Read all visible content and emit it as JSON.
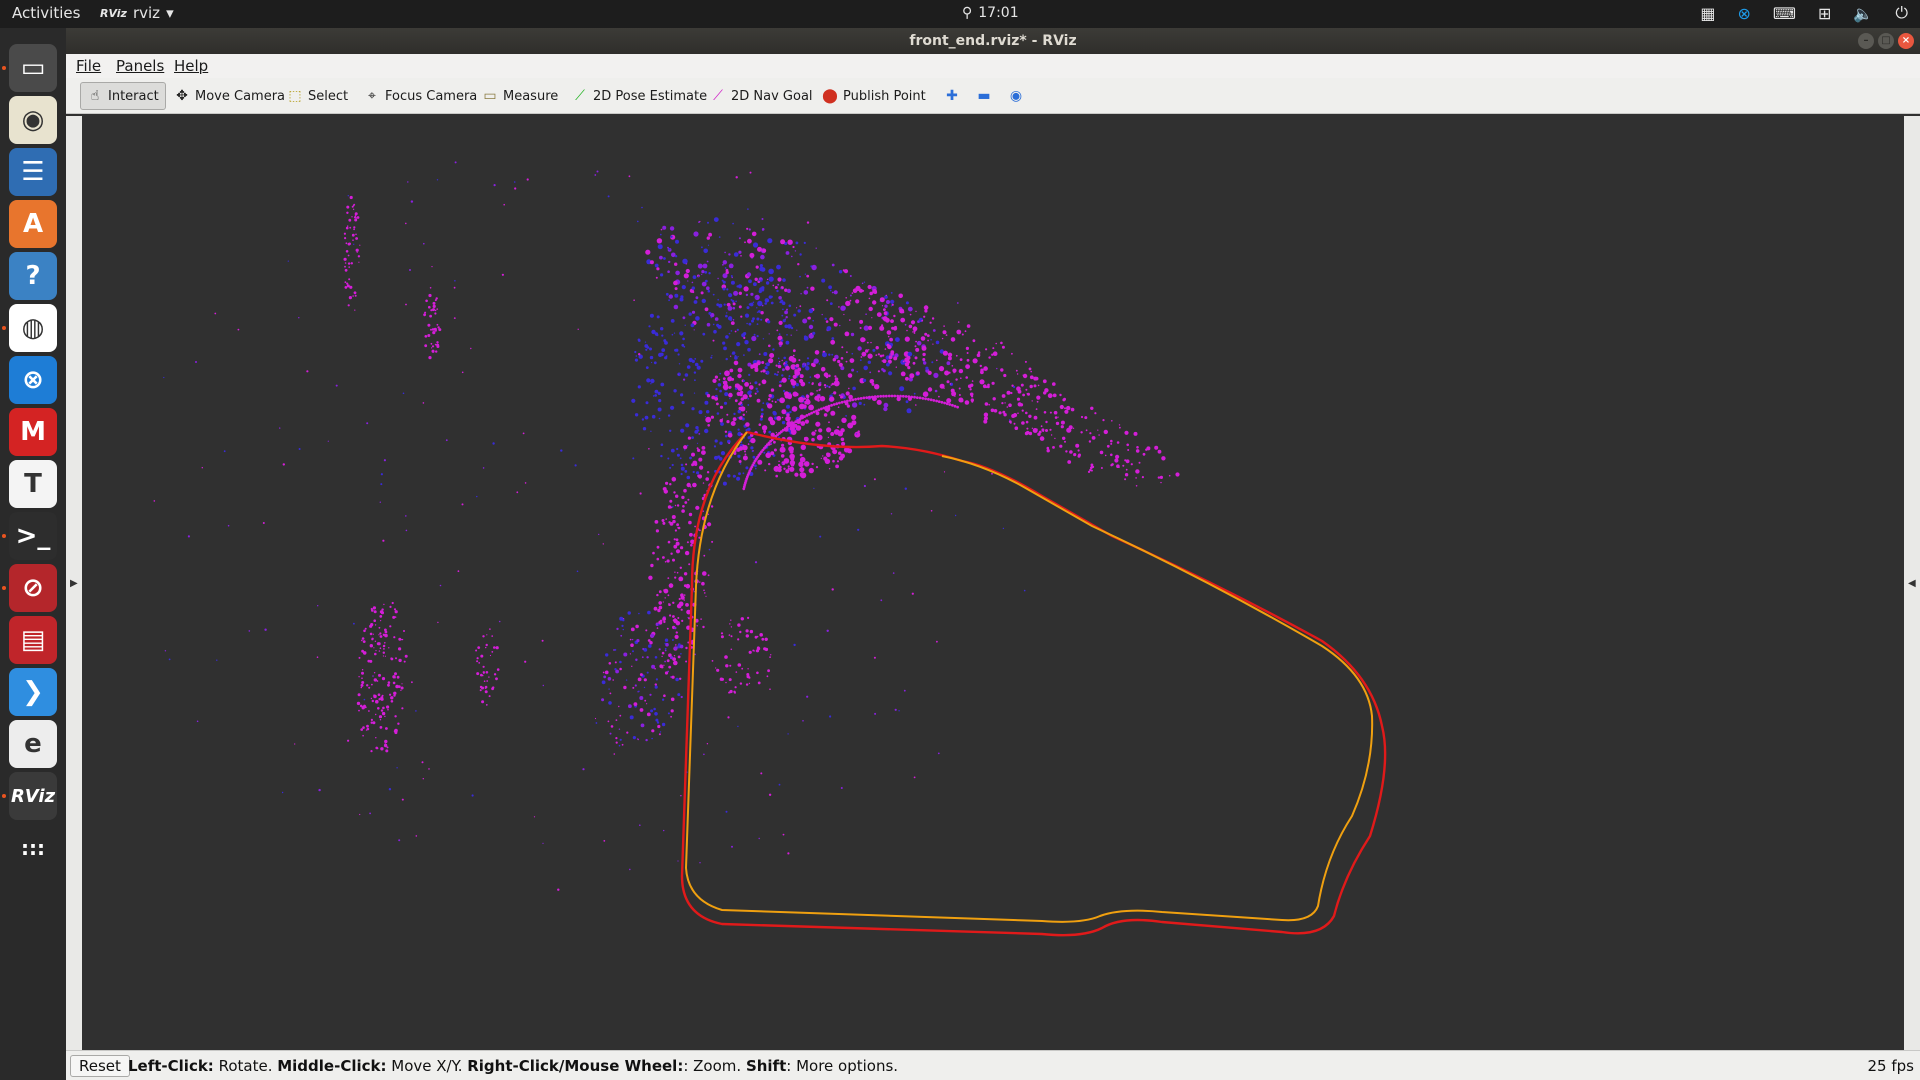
{
  "topbar": {
    "activities": "Activities",
    "app_name": "rviz",
    "app_badge": "RViz",
    "time": "17:01"
  },
  "window": {
    "title": "front_end.rviz* - RViz"
  },
  "menu": {
    "file": "File",
    "panels": "Panels",
    "help": "Help"
  },
  "toolbar": {
    "interact": "Interact",
    "move_camera": "Move Camera",
    "select": "Select",
    "focus_camera": "Focus Camera",
    "measure": "Measure",
    "pose_estimate": "2D Pose Estimate",
    "nav_goal": "2D Nav Goal",
    "publish_point": "Publish Point"
  },
  "dock": {
    "items": [
      {
        "name": "files-icon",
        "color": "#4a4a4a"
      },
      {
        "name": "rhythmbox-icon",
        "color": "#e8e3cf"
      },
      {
        "name": "writer-icon",
        "color": "#2f6db3"
      },
      {
        "name": "software-icon",
        "color": "#e8752d"
      },
      {
        "name": "help-icon",
        "color": "#3b82c4"
      },
      {
        "name": "chrome-icon",
        "color": "#ffffff"
      },
      {
        "name": "teamviewer-icon",
        "color": "#1e7dd6"
      },
      {
        "name": "mindmap-icon",
        "color": "#d42323"
      },
      {
        "name": "typora-icon",
        "color": "#f4f4f4"
      },
      {
        "name": "terminal-icon",
        "color": "#2d2d2d"
      },
      {
        "name": "remmina-icon",
        "color": "#b4262b"
      },
      {
        "name": "screen-icon",
        "color": "#c0252a"
      },
      {
        "name": "vscode-icon",
        "color": "#2f8ee0"
      },
      {
        "name": "opera-icon",
        "color": "#ededed"
      },
      {
        "name": "rviz-icon",
        "color": "#3a3a3a"
      },
      {
        "name": "app-grid-icon",
        "color": "#2a2a2a"
      }
    ],
    "rviz_label": "RViz"
  },
  "status": {
    "reset": "Reset",
    "left_click_label": "Left-Click:",
    "left_click_text": " Rotate. ",
    "middle_click_label": "Middle-Click:",
    "middle_click_text": " Move X/Y. ",
    "right_click_label": "Right-Click/Mouse Wheel:",
    "right_click_text": ": Zoom. ",
    "shift_label": "Shift",
    "shift_text": ": More options.",
    "fps": "25 fps"
  },
  "scene": {
    "background": "#303030",
    "trajectory_colors": [
      "#e01a1a",
      "#f0a010"
    ],
    "cloud_colors": [
      "#d41ed8",
      "#3a2bd8",
      "#8a20e0"
    ]
  }
}
